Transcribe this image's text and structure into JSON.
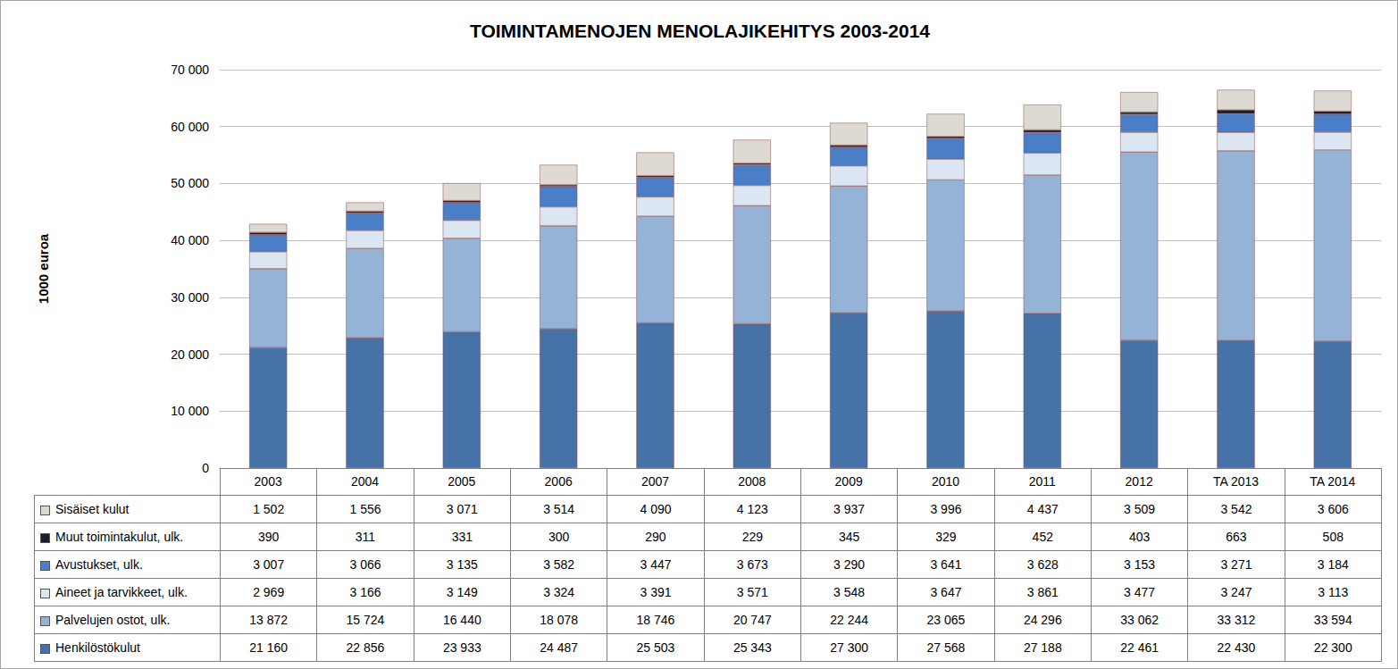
{
  "chart_data": {
    "type": "bar",
    "title": "TOIMINTAMENOJEN MENOLAJIKEHITYS 2003-2014",
    "y_label": "1000 euroa",
    "stacked": true,
    "grid": true,
    "categories": [
      "2003",
      "2004",
      "2005",
      "2006",
      "2007",
      "2008",
      "2009",
      "2010",
      "2011",
      "2012",
      "TA 2013",
      "TA 2014"
    ],
    "ylim": [
      0,
      70000
    ],
    "yticks": [
      0,
      {
        "value": 10000,
        "label": "10 000"
      },
      {
        "value": 20000,
        "label": "20 000"
      },
      {
        "value": 30000,
        "label": "30 000"
      },
      {
        "value": 40000,
        "label": "40 000"
      },
      {
        "value": 50000,
        "label": "50 000"
      },
      {
        "value": 60000,
        "label": "60 000"
      },
      {
        "value": 70000,
        "label": "70 000"
      }
    ],
    "series": [
      {
        "name": "Henkilöstökulut",
        "color": "#4672a8",
        "values": [
          21160,
          22856,
          23933,
          24487,
          25503,
          25343,
          27300,
          27568,
          27188,
          22461,
          22430,
          22300
        ],
        "value_labels": [
          "21 160",
          "22 856",
          "23 933",
          "24 487",
          "25 503",
          "25 343",
          "27 300",
          "27 568",
          "27 188",
          "22 461",
          "22 430",
          "22 300"
        ]
      },
      {
        "name": "Palvelujen ostot, ulk.",
        "color": "#95b3d7",
        "values": [
          13872,
          15724,
          16440,
          18078,
          18746,
          20747,
          22244,
          23065,
          24296,
          33062,
          33312,
          33594
        ],
        "value_labels": [
          "13 872",
          "15 724",
          "16 440",
          "18 078",
          "18 746",
          "20 747",
          "22 244",
          "23 065",
          "24 296",
          "33 062",
          "33 312",
          "33 594"
        ]
      },
      {
        "name": "Aineet ja tarvikkeet, ulk.",
        "color": "#dce6f2",
        "values": [
          2969,
          3166,
          3149,
          3324,
          3391,
          3571,
          3548,
          3647,
          3861,
          3477,
          3247,
          3113
        ],
        "value_labels": [
          "2 969",
          "3 166",
          "3 149",
          "3 324",
          "3 391",
          "3 571",
          "3 548",
          "3 647",
          "3 861",
          "3 477",
          "3 247",
          "3 113"
        ]
      },
      {
        "name": "Avustukset, ulk.",
        "color": "#4a7fc8",
        "values": [
          3007,
          3066,
          3135,
          3582,
          3447,
          3673,
          3290,
          3641,
          3628,
          3153,
          3271,
          3184
        ],
        "value_labels": [
          "3 007",
          "3 066",
          "3 135",
          "3 582",
          "3 447",
          "3 673",
          "3 290",
          "3 641",
          "3 628",
          "3 153",
          "3 271",
          "3 184"
        ]
      },
      {
        "name": "Muut toimintakulut, ulk.",
        "color": "#1a1f2b",
        "values": [
          390,
          311,
          331,
          300,
          290,
          229,
          345,
          329,
          452,
          403,
          663,
          508
        ],
        "value_labels": [
          "390",
          "311",
          "331",
          "300",
          "290",
          "229",
          "345",
          "329",
          "452",
          "403",
          "663",
          "508"
        ]
      },
      {
        "name": "Sisäiset kulut",
        "color": "#ddd9d3",
        "values": [
          1502,
          1556,
          3071,
          3514,
          4090,
          4123,
          3937,
          3996,
          4437,
          3509,
          3542,
          3606
        ],
        "value_labels": [
          "1 502",
          "1 556",
          "3 071",
          "3 514",
          "4 090",
          "4 123",
          "3 937",
          "3 996",
          "4 437",
          "3 509",
          "3 542",
          "3 606"
        ]
      }
    ]
  }
}
